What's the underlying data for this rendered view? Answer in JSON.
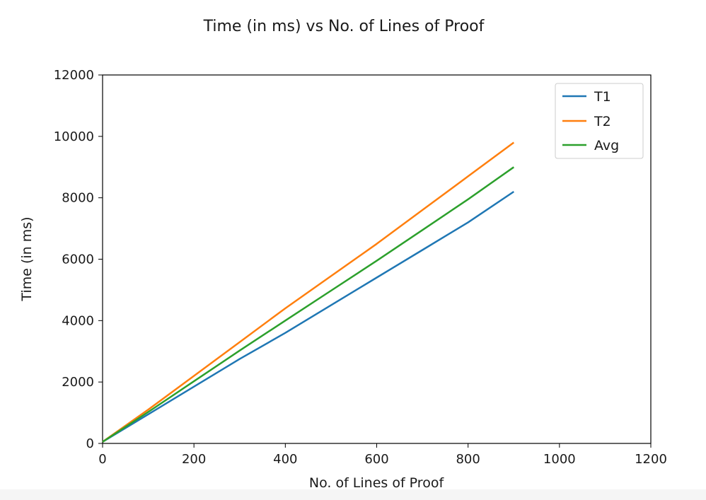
{
  "chart_data": {
    "type": "line",
    "title": "Time (in ms) vs No. of Lines of Proof",
    "xlabel": "No. of Lines of Proof",
    "ylabel": "Time (in ms)",
    "xlim": [
      0,
      1200
    ],
    "ylim": [
      0,
      12000
    ],
    "xticks": [
      0,
      200,
      400,
      600,
      800,
      1000,
      1200
    ],
    "yticks": [
      0,
      2000,
      4000,
      6000,
      8000,
      10000,
      12000
    ],
    "grid": false,
    "legend_position": "top-right",
    "series": [
      {
        "name": "T1",
        "color": "#1f77b4",
        "x": [
          0,
          100,
          200,
          300,
          400,
          500,
          600,
          700,
          800,
          900
        ],
        "y": [
          50,
          950,
          1850,
          2750,
          3600,
          4500,
          5400,
          6300,
          7200,
          8200
        ]
      },
      {
        "name": "T2",
        "color": "#ff7f0e",
        "x": [
          0,
          100,
          200,
          300,
          400,
          500,
          600,
          700,
          800,
          900
        ],
        "y": [
          50,
          1100,
          2200,
          3300,
          4400,
          5450,
          6500,
          7600,
          8700,
          9800
        ]
      },
      {
        "name": "Avg",
        "color": "#2ca02c",
        "x": [
          0,
          100,
          200,
          300,
          400,
          500,
          600,
          700,
          800,
          900
        ],
        "y": [
          50,
          1025,
          2025,
          3025,
          4000,
          4975,
          5950,
          6950,
          7950,
          9000
        ]
      }
    ]
  }
}
